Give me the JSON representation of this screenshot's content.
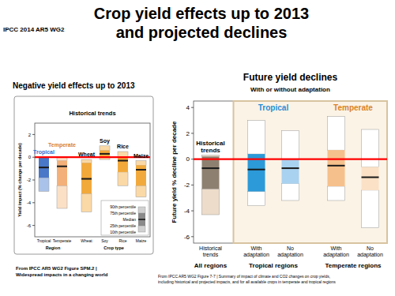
{
  "header": {
    "title": [
      "Crop yield effects up to 2013",
      "and projected declines"
    ],
    "source": "IPCC 2014 AR5 WG2"
  },
  "chart_data": [
    {
      "type": "box",
      "panel_title": "Negative yield effects up to 2013",
      "title": "Historical trends",
      "y_label": "Yield impact (% change per decade)",
      "categories": [
        "Tropical",
        "Temperate",
        "Wheat",
        "Soy",
        "Rice",
        "Maize"
      ],
      "groups": [
        {
          "label": "Region",
          "size": 2
        },
        {
          "label": "Crop type",
          "size": 4
        }
      ],
      "p90": [
        0.0,
        0.0,
        -0.2,
        1.0,
        0.5,
        -0.3
      ],
      "p75": [
        0.0,
        -0.3,
        -0.5,
        0.6,
        0.0,
        -0.7
      ],
      "median": [
        -0.9,
        -0.8,
        -1.9,
        0.3,
        -0.3,
        -1.1
      ],
      "p25": [
        -1.8,
        -2.5,
        -3.2,
        0.0,
        -1.3,
        -2.5
      ],
      "p10": [
        -3.0,
        -4.5,
        -4.8,
        -0.2,
        -2.5,
        -3.5
      ],
      "colors": [
        "#4a78c8",
        "#f3b078",
        "#f2a93b",
        "#f2a93b",
        "#f2a93b",
        "#f2a93b"
      ],
      "outer_colors": [
        "#a9c2ea",
        "#fbe0c6",
        "#fbd9a6",
        "#fbd9a6",
        "#fbd9a6",
        "#fbd9a6"
      ],
      "ylim": [
        -7,
        3
      ],
      "yticks": [
        2,
        0,
        -2,
        -4,
        -6
      ],
      "reference_line": {
        "value": 0,
        "color": "#ff0000"
      },
      "annotations": [
        {
          "text": "Tropical",
          "category": 0,
          "color": "#2f6fd1"
        },
        {
          "text": "Temperate",
          "category": 1,
          "color": "#d9822b"
        },
        {
          "text": "Wheat",
          "category": 2,
          "color": "#000000"
        },
        {
          "text": "Soy",
          "category": 3,
          "color": "#000000"
        },
        {
          "text": "Rice",
          "category": 4,
          "color": "#000000"
        },
        {
          "text": "Maize",
          "category": 5,
          "color": "#000000"
        }
      ],
      "legend": "lower right",
      "legend_entries": [
        "90th percentile",
        "75th percentile",
        "Median",
        "25th percentile",
        "10th percentile"
      ],
      "caption": [
        "From IPCC AR5 WG2 Figure SPM.2 |",
        "Widespread impacts in a changing world"
      ]
    },
    {
      "type": "box",
      "title": "Future yield declines",
      "subtitle": "With or without adaptation",
      "y_label": "Future yield % decline per decade",
      "categories": [
        "Historical trends",
        "With adaptation",
        "No adaptation",
        "With adaptation",
        "No adaptation"
      ],
      "groups": [
        {
          "label": "All regions",
          "size": 1
        },
        {
          "label": "Tropical regions",
          "size": 2,
          "header": "Tropical",
          "header_color": "#1f8fd6"
        },
        {
          "label": "Temperate regions",
          "size": 2,
          "header": "Temperate",
          "header_color": "#d9822b"
        }
      ],
      "p90": [
        0.3,
        3.0,
        2.2,
        3.3,
        2.3
      ],
      "p75": [
        0.2,
        0.4,
        0.0,
        0.7,
        -0.6
      ],
      "median": [
        -0.7,
        -0.8,
        -0.7,
        -0.5,
        -1.4
      ],
      "p25": [
        -2.3,
        -2.5,
        -1.9,
        -2.1,
        -2.4
      ],
      "p10": [
        -4.3,
        -3.6,
        -3.2,
        -3.2,
        -5.3
      ],
      "colors": [
        "#8e8070",
        "#2c9ad8",
        "#a9d2f0",
        "#f6c08c",
        "#fbe1c6"
      ],
      "outer_colors": [
        "#ecdcc9",
        "#ffffff",
        "#ffffff",
        "#ffffff",
        "#ffffff"
      ],
      "ylim": [
        -6.5,
        4.5
      ],
      "yticks": [
        4,
        2,
        0,
        -2,
        -4,
        -6
      ],
      "reference_line": {
        "value": 0,
        "color": "#ff0000"
      },
      "annotations": [
        {
          "text": "Historical trends",
          "category": 0,
          "color": "#000000"
        }
      ],
      "caption": [
        "From IPCC AR5 WG2 Figure 7-7 | Summary of impact of climate and CO2 changes on crop yields,",
        "including historical and projected impacts, and for all available crops in temperate and tropical regions"
      ]
    }
  ]
}
